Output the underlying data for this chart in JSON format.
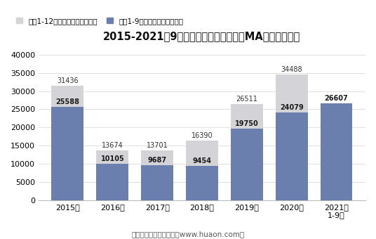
{
  "title": "2015-2021年9月郑州商品交易所甲醇（MA）期货成交量",
  "years": [
    "2015年",
    "2016年",
    "2017年",
    "2018年",
    "2019年",
    "2020年",
    "2021年\n1-9月"
  ],
  "full_year_values": [
    31436,
    13674,
    13701,
    16390,
    26511,
    34488,
    null
  ],
  "jan_sep_values": [
    25588,
    10105,
    9687,
    9454,
    19750,
    24079,
    26607
  ],
  "full_year_color": "#d4d4d8",
  "jan_sep_color": "#6b7faf",
  "legend_full": "历年1-12月期货成交量（万手）",
  "legend_jan_sep": "历年1-9月期货成交量（万手）",
  "ylim": [
    0,
    42000
  ],
  "yticks": [
    0,
    5000,
    10000,
    15000,
    20000,
    25000,
    30000,
    35000,
    40000
  ],
  "footer": "制图：华经产业研究院（www.huaon.com）",
  "background_color": "#ffffff",
  "bar_width": 0.72
}
